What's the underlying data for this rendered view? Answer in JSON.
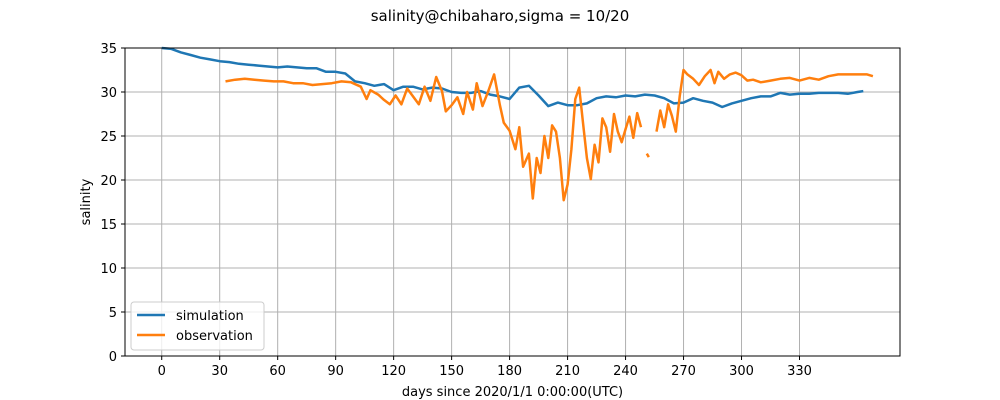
{
  "chart_data": {
    "type": "line",
    "title": "salinity@chibaharo,sigma = 10/20",
    "xlabel": "days since 2020/1/1 0:00:00(UTC)",
    "ylabel": "salinity",
    "xlim": [
      -19,
      382
    ],
    "ylim": [
      0,
      35
    ],
    "xticks": [
      0,
      30,
      60,
      90,
      120,
      150,
      180,
      210,
      240,
      270,
      300,
      330
    ],
    "yticks": [
      0,
      5,
      10,
      15,
      20,
      25,
      30,
      35
    ],
    "grid": true,
    "legend_position": "lower-left",
    "series": [
      {
        "name": "simulation",
        "color": "#1f77b4",
        "x": [
          0,
          5,
          10,
          15,
          20,
          25,
          30,
          35,
          40,
          45,
          50,
          55,
          60,
          65,
          70,
          75,
          80,
          85,
          90,
          95,
          100,
          105,
          110,
          115,
          120,
          125,
          130,
          135,
          140,
          145,
          150,
          155,
          160,
          165,
          170,
          175,
          180,
          185,
          190,
          195,
          200,
          205,
          210,
          215,
          220,
          225,
          230,
          235,
          240,
          245,
          250,
          255,
          260,
          265,
          270,
          275,
          280,
          285,
          290,
          295,
          300,
          305,
          310,
          315,
          320,
          325,
          330,
          335,
          340,
          345,
          350,
          355,
          360,
          363
        ],
        "y": [
          35.0,
          34.9,
          34.5,
          34.2,
          33.9,
          33.7,
          33.5,
          33.4,
          33.2,
          33.1,
          33.0,
          32.9,
          32.8,
          32.9,
          32.8,
          32.7,
          32.7,
          32.3,
          32.3,
          32.1,
          31.2,
          31.0,
          30.7,
          30.9,
          30.2,
          30.6,
          30.6,
          30.3,
          30.5,
          30.4,
          30.0,
          29.9,
          29.9,
          30.1,
          29.7,
          29.5,
          29.2,
          30.5,
          30.7,
          29.6,
          28.4,
          28.8,
          28.5,
          28.5,
          28.7,
          29.3,
          29.5,
          29.4,
          29.6,
          29.5,
          29.7,
          29.6,
          29.3,
          28.7,
          28.8,
          29.3,
          29.0,
          28.8,
          28.3,
          28.7,
          29.0,
          29.3,
          29.5,
          29.5,
          29.9,
          29.7,
          29.8,
          29.8,
          29.9,
          29.9,
          29.9,
          29.8,
          30.0,
          30.1
        ]
      },
      {
        "name": "observation",
        "color": "#ff7f0e",
        "x": [
          33,
          38,
          43,
          48,
          53,
          58,
          63,
          68,
          73,
          78,
          83,
          88,
          93,
          98,
          103,
          106,
          108,
          112,
          115,
          118,
          121,
          124,
          127,
          130,
          133,
          136,
          139,
          142,
          145,
          147,
          150,
          153,
          156,
          158,
          161,
          163,
          166,
          169,
          172,
          175,
          177,
          180,
          183,
          185,
          187,
          190,
          192,
          194,
          196,
          198,
          200,
          202,
          204,
          206,
          208,
          210,
          212,
          214,
          216,
          218,
          220,
          222,
          224,
          226,
          228,
          230,
          232,
          234,
          236,
          238,
          240,
          242,
          244,
          246,
          248,
          null,
          251,
          252,
          null,
          256,
          258,
          260,
          262,
          264,
          266,
          268,
          270,
          272,
          275,
          278,
          281,
          284,
          286,
          288,
          291,
          294,
          297,
          300,
          303,
          306,
          310,
          315,
          320,
          325,
          330,
          335,
          340,
          345,
          350,
          355,
          360,
          365,
          368
        ],
        "y": [
          31.2,
          31.4,
          31.5,
          31.4,
          31.3,
          31.2,
          31.2,
          31.0,
          31.0,
          30.8,
          30.9,
          31.0,
          31.2,
          31.1,
          30.6,
          29.2,
          30.2,
          29.7,
          29.1,
          28.6,
          29.6,
          28.6,
          30.4,
          29.5,
          28.6,
          30.6,
          29.0,
          31.7,
          30.1,
          27.8,
          28.5,
          29.4,
          27.5,
          30.0,
          28.0,
          31.0,
          28.4,
          30.1,
          32.0,
          28.5,
          26.5,
          25.6,
          23.5,
          26.0,
          21.5,
          23.0,
          17.9,
          22.5,
          20.8,
          25.0,
          22.5,
          26.2,
          25.5,
          22.5,
          17.7,
          19.5,
          23.5,
          29.2,
          30.5,
          26.5,
          22.5,
          20.1,
          24.0,
          22.0,
          27.0,
          26.0,
          23.2,
          27.5,
          25.5,
          24.3,
          25.8,
          27.2,
          24.8,
          27.6,
          26.0,
          null,
          23.0,
          22.6,
          null,
          25.5,
          27.9,
          26.0,
          28.6,
          27.3,
          25.5,
          29.5,
          32.5,
          32.0,
          31.5,
          30.8,
          31.8,
          32.5,
          31.0,
          32.3,
          31.5,
          32.0,
          32.2,
          31.9,
          31.3,
          31.4,
          31.1,
          31.3,
          31.5,
          31.6,
          31.3,
          31.6,
          31.4,
          31.8,
          32.0,
          32.0,
          32.0,
          32.0,
          31.8
        ]
      }
    ]
  }
}
